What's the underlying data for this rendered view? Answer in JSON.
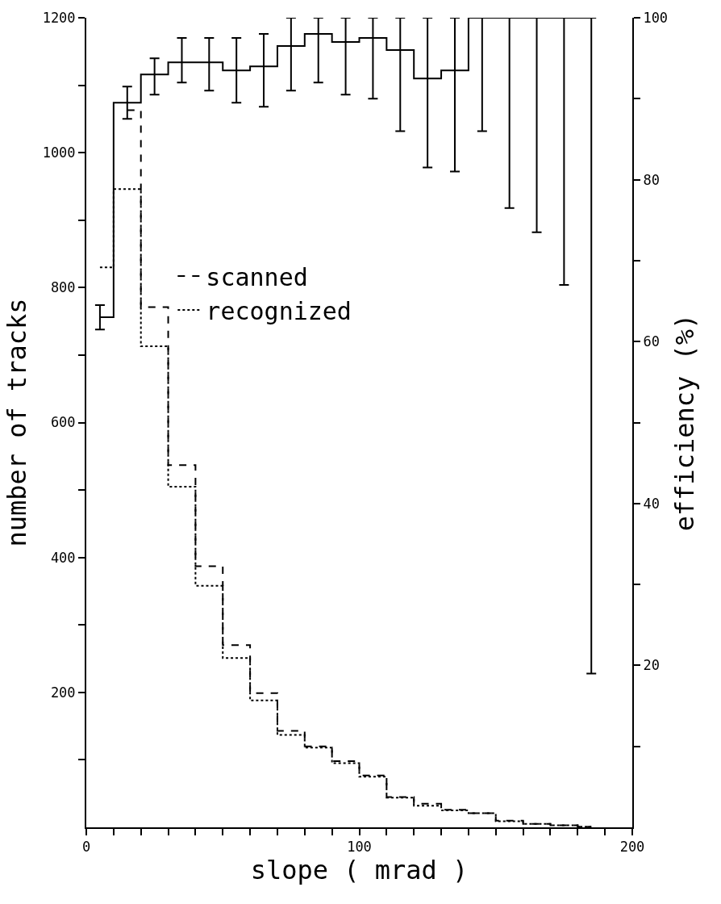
{
  "chart_data": {
    "type": "step",
    "xlabel": "slope ( mrad )",
    "ylabel": "number of tracks",
    "y2label": "efficiency (%)",
    "x": [
      5,
      15,
      25,
      35,
      45,
      55,
      65,
      75,
      85,
      95,
      105,
      115,
      125,
      135,
      145,
      155,
      165,
      175,
      185
    ],
    "series": [
      {
        "name": "scanned",
        "color": "#000000",
        "line_style": "dashed",
        "values": [
          null,
          1063,
          771,
          537,
          387,
          270,
          199,
          143,
          120,
          98,
          77,
          45,
          35,
          26,
          21,
          10,
          5,
          3,
          1
        ]
      },
      {
        "name": "recognized",
        "color": "#000000",
        "line_style": "dotted",
        "values": [
          830,
          946,
          713,
          505,
          358,
          251,
          188,
          137,
          118,
          95,
          75,
          44,
          32,
          25,
          21,
          9,
          5,
          3,
          1
        ]
      },
      {
        "type": "step",
        "axis": "y2",
        "color": "#000000",
        "line_style": "solid",
        "values": [
          63,
          89.5,
          93,
          94.5,
          94.5,
          93.5,
          94,
          96.5,
          98,
          97,
          97.5,
          96,
          92.5,
          93.5,
          100,
          100,
          100,
          100,
          100
        ],
        "errors": [
          [
            61.5,
            64.5
          ],
          [
            87.5,
            91.5
          ],
          [
            90.5,
            95
          ],
          [
            92,
            97.5
          ],
          [
            91,
            97.5
          ],
          [
            89.5,
            97.5
          ],
          [
            89,
            98
          ],
          [
            91,
            100
          ],
          [
            92,
            100
          ],
          [
            90.5,
            100
          ],
          [
            90,
            100
          ],
          [
            86,
            100
          ],
          [
            81.5,
            100
          ],
          [
            81,
            100
          ],
          [
            86,
            100
          ],
          [
            76.5,
            100
          ],
          [
            73.5,
            100
          ],
          [
            67,
            100
          ],
          [
            19,
            100
          ]
        ]
      }
    ],
    "xlim": [
      0,
      200
    ],
    "xticks": [
      0,
      {
        "value": 10,
        "label": null
      },
      {
        "value": 20,
        "label": null
      },
      {
        "value": 30,
        "label": null
      },
      {
        "value": 40,
        "label": null
      },
      {
        "value": 50,
        "label": null
      },
      {
        "value": 60,
        "label": null
      },
      {
        "value": 70,
        "label": null
      },
      {
        "value": 80,
        "label": null
      },
      {
        "value": 90,
        "label": null
      },
      100,
      {
        "value": 110,
        "label": null
      },
      {
        "value": 120,
        "label": null
      },
      {
        "value": 130,
        "label": null
      },
      {
        "value": 140,
        "label": null
      },
      {
        "value": 150,
        "label": null
      },
      {
        "value": 160,
        "label": null
      },
      {
        "value": 170,
        "label": null
      },
      {
        "value": 180,
        "label": null
      },
      {
        "value": 190,
        "label": null
      },
      200
    ],
    "ylim": [
      0,
      1200
    ],
    "yticks": [
      {
        "value": 100,
        "label": null
      },
      200,
      {
        "value": 300,
        "label": null
      },
      400,
      {
        "value": 500,
        "label": null
      },
      600,
      {
        "value": 700,
        "label": null
      },
      800,
      {
        "value": 900,
        "label": null
      },
      1000,
      {
        "value": 1100,
        "label": null
      },
      1200
    ],
    "y2lim": [
      0,
      100
    ],
    "y2ticks": [
      {
        "value": 10,
        "label": null
      },
      20,
      {
        "value": 30,
        "label": null
      },
      40,
      {
        "value": 50,
        "label": null
      },
      60,
      {
        "value": 70,
        "label": null
      },
      80,
      {
        "value": 90,
        "label": null
      },
      100
    ],
    "legend": "center left",
    "grid": false
  }
}
